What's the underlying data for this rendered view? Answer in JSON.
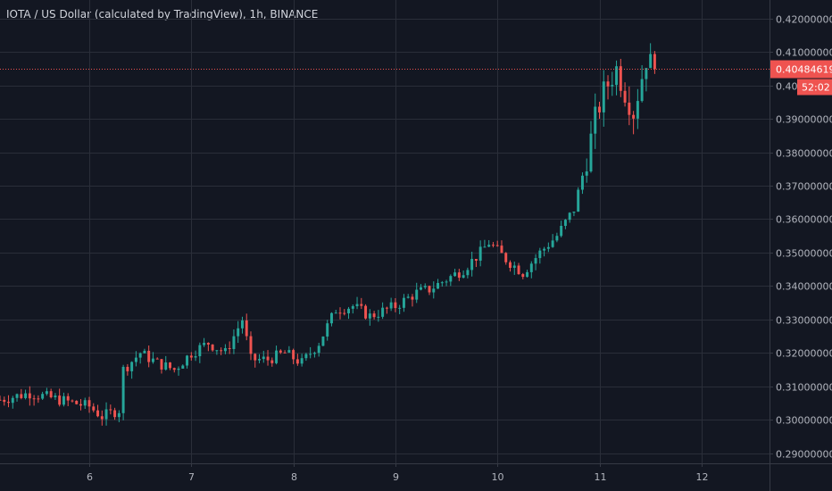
{
  "chart_data": {
    "type": "candlestick",
    "title": "IOTA / US Dollar (calculated by TradingView), 1h, BINANCE",
    "ylim": [
      0.287,
      0.4255
    ],
    "y_ticks": [
      "0.42000000",
      "0.41000000",
      "0.40000000",
      "0.39000000",
      "0.38000000",
      "0.37000000",
      "0.36000000",
      "0.35000000",
      "0.34000000",
      "0.33000000",
      "0.32000000",
      "0.31000000",
      "0.30000000",
      "0.29000000"
    ],
    "y_tick_values": [
      0.42,
      0.41,
      0.4,
      0.39,
      0.38,
      0.37,
      0.36,
      0.35,
      0.34,
      0.33,
      0.32,
      0.31,
      0.3,
      0.29
    ],
    "x_ticks": [
      "6",
      "7",
      "8",
      "9",
      "10",
      "11",
      "12"
    ],
    "x_tick_times": [
      24,
      48,
      72,
      96,
      120,
      144,
      168
    ],
    "time_range": [
      3,
      184
    ],
    "grid": true,
    "last_price": 0.40484619,
    "last_price_label": "0.40484619",
    "countdown_label": "52:02",
    "colors": {
      "up": "#26a69a",
      "down": "#ef5350",
      "background": "#131722",
      "grid": "#2a2e39",
      "text": "#b2b5be",
      "price_line": "#ef5350"
    },
    "anchors": [
      [
        3,
        0.306
      ],
      [
        10,
        0.308
      ],
      [
        24,
        0.304
      ],
      [
        27,
        0.301
      ],
      [
        31,
        0.303
      ],
      [
        32,
        0.315
      ],
      [
        36,
        0.32
      ],
      [
        40,
        0.317
      ],
      [
        44,
        0.315
      ],
      [
        48,
        0.32
      ],
      [
        52,
        0.323
      ],
      [
        56,
        0.32
      ],
      [
        60,
        0.33
      ],
      [
        62,
        0.318
      ],
      [
        66,
        0.318
      ],
      [
        70,
        0.32
      ],
      [
        74,
        0.317
      ],
      [
        78,
        0.323
      ],
      [
        82,
        0.333
      ],
      [
        86,
        0.334
      ],
      [
        90,
        0.331
      ],
      [
        96,
        0.334
      ],
      [
        101,
        0.338
      ],
      [
        104,
        0.339
      ],
      [
        108,
        0.342
      ],
      [
        112,
        0.345
      ],
      [
        116,
        0.35
      ],
      [
        118,
        0.353
      ],
      [
        122,
        0.348
      ],
      [
        126,
        0.344
      ],
      [
        130,
        0.35
      ],
      [
        134,
        0.355
      ],
      [
        138,
        0.363
      ],
      [
        141,
        0.378
      ],
      [
        143,
        0.39
      ],
      [
        145,
        0.398
      ],
      [
        148,
        0.405
      ],
      [
        150,
        0.398
      ],
      [
        152,
        0.392
      ],
      [
        155,
        0.408
      ],
      [
        157,
        0.405
      ]
    ],
    "volatility": 0.0016,
    "seed": 7
  }
}
